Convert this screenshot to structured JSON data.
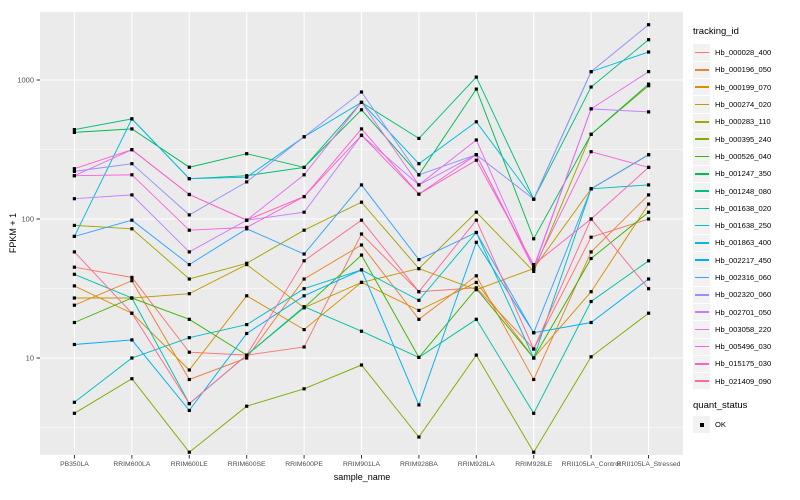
{
  "figure": {
    "y_axis_title": "FPKM + 1",
    "x_axis_title": "sample_name",
    "legend_title": "tracking_id",
    "quant_legend": {
      "title": "quant_status",
      "label": "OK"
    }
  },
  "colors": {
    "panel_background": "#EBEBEB",
    "gridline": "#FFFFFF",
    "tick_text": "#4D4D4D",
    "point": "#000000",
    "legend_key_background": "#F2F2F2"
  },
  "chart_data": {
    "type": "line",
    "title": "",
    "xlabel": "sample_name",
    "ylabel": "FPKM + 1",
    "y_scale": "log10",
    "y_ticks": [
      10,
      100,
      1000
    ],
    "y_minor_ticks": [
      3.162,
      31.62,
      316.2
    ],
    "ylim": [
      1.9,
      3100
    ],
    "grid": true,
    "legend_position": "right",
    "legend_title": "tracking_id",
    "point_legend": {
      "title": "quant_status",
      "label": "OK"
    },
    "x_categories": [
      "PB350LA",
      "RRIM600LA",
      "RRIM600LE",
      "RRIM600SE",
      "RRIM600PE",
      "RRIM901LA",
      "RRIM928BA",
      "RRIM928LA",
      "RRIM928LE",
      "RRII105LA_Control",
      "RRII105LA_Stressed"
    ],
    "series": [
      {
        "name": "Hb_000028_400",
        "color": "#F8766D",
        "values": [
          45,
          38,
          11,
          10.5,
          12,
          78,
          30,
          32,
          11.6,
          74,
          100
        ]
      },
      {
        "name": "Hb_000196_050",
        "color": "#EA8331",
        "values": [
          24,
          36,
          7,
          10,
          37,
          65,
          19,
          39,
          7,
          58,
          149
        ]
      },
      {
        "name": "Hb_000199_070",
        "color": "#D89000",
        "values": [
          33,
          21,
          8.2,
          28,
          16,
          35,
          22,
          35,
          10,
          30,
          128
        ]
      },
      {
        "name": "Hb_000274_020",
        "color": "#C09B00",
        "values": [
          27,
          27,
          29,
          47,
          23,
          35,
          44,
          31,
          44,
          165,
          290
        ]
      },
      {
        "name": "Hb_000283_110",
        "color": "#A3A500",
        "values": [
          90,
          85,
          37,
          48,
          83,
          132,
          44,
          112,
          42,
          407,
          910
        ]
      },
      {
        "name": "Hb_000395_240",
        "color": "#7CAE00",
        "values": [
          4.0,
          7.1,
          2.1,
          4.5,
          6.0,
          8.9,
          2.7,
          10.5,
          2.1,
          10.2,
          21
        ]
      },
      {
        "name": "Hb_000526_040",
        "color": "#39B600",
        "values": [
          18,
          27,
          19,
          10.5,
          23,
          55,
          10.1,
          31.5,
          10,
          52,
          112
        ]
      },
      {
        "name": "Hb_001247_350",
        "color": "#00BB4E",
        "values": [
          420,
          445,
          236,
          295,
          235,
          610,
          208,
          860,
          72,
          407,
          935
        ]
      },
      {
        "name": "Hb_001248_080",
        "color": "#00BF7D",
        "values": [
          440,
          525,
          195,
          205,
          235,
          690,
          380,
          1050,
          139,
          890,
          1950
        ]
      },
      {
        "name": "Hb_001638_020",
        "color": "#00C1A3",
        "values": [
          40,
          27,
          4.7,
          10.5,
          23.4,
          15.6,
          10.1,
          19,
          4.0,
          25.5,
          50
        ]
      },
      {
        "name": "Hb_001638_250",
        "color": "#00BFC4",
        "values": [
          4.8,
          10,
          14,
          17.4,
          31.5,
          43,
          26,
          80,
          10,
          165,
          176
        ]
      },
      {
        "name": "Hb_001863_400",
        "color": "#00BAE0",
        "values": [
          75,
          525,
          195,
          200,
          390,
          690,
          250,
          500,
          139,
          1150,
          1590
        ]
      },
      {
        "name": "Hb_002217_450",
        "color": "#00B0F6",
        "values": [
          12.5,
          13.5,
          4.2,
          15,
          28,
          43,
          4.6,
          68,
          15.2,
          18,
          37
        ]
      },
      {
        "name": "Hb_002316_060",
        "color": "#35A2FF",
        "values": [
          75,
          98,
          47,
          85,
          56,
          176,
          51,
          80,
          15.2,
          165,
          290
        ]
      },
      {
        "name": "Hb_002320_060",
        "color": "#9590FF",
        "values": [
          220,
          250,
          107,
          185,
          390,
          820,
          208,
          290,
          139,
          1150,
          2500
        ]
      },
      {
        "name": "Hb_002701_050",
        "color": "#C77CFF",
        "values": [
          140,
          149,
          58,
          98,
          112,
          400,
          176,
          290,
          45,
          620,
          590
        ]
      },
      {
        "name": "Hb_003058_220",
        "color": "#E76BF3",
        "values": [
          205,
          315,
          150,
          98,
          208,
          690,
          176,
          370,
          44,
          620,
          1150
        ]
      },
      {
        "name": "Hb_005496_030",
        "color": "#FA62DB",
        "values": [
          205,
          208,
          83,
          87,
          145,
          445,
          151,
          290,
          44,
          305,
          235
        ]
      },
      {
        "name": "Hb_015175_030",
        "color": "#FF62BC",
        "values": [
          230,
          315,
          150,
          98,
          145,
          400,
          151,
          265,
          47,
          100,
          235
        ]
      },
      {
        "name": "Hb_021409_090",
        "color": "#FF6A98",
        "values": [
          58,
          21,
          4.7,
          10.5,
          50,
          98,
          30,
          98,
          11.6,
          100,
          31.5
        ]
      }
    ]
  }
}
